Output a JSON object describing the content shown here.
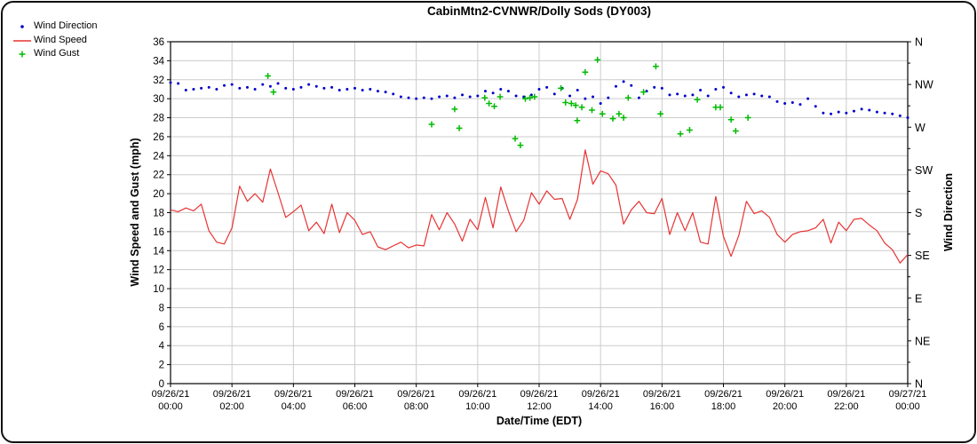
{
  "window": {
    "title": "CabinMtn2-CVNWR/Dolly Sods (DY003)"
  },
  "colors": {
    "wind_direction": "#0000cc",
    "wind_speed": "#e83333",
    "wind_gust": "#00bb00",
    "grid": "#cccccc",
    "axis": "#000000",
    "background": "#ffffff",
    "border": "#111111"
  },
  "legend": {
    "items": [
      {
        "label": "Wind Direction",
        "marker": "dot",
        "color": "#0000cc"
      },
      {
        "label": "Wind Speed",
        "marker": "line",
        "color": "#e83333"
      },
      {
        "label": "Wind Gust",
        "marker": "plus",
        "color": "#00bb00"
      }
    ]
  },
  "chart_data": {
    "type": "line",
    "title": "CabinMtn2-CVNWR/Dolly Sods (DY003)",
    "xlabel": "Date/Time (EDT)",
    "ylabel_left": "Wind Speed and Gust (mph)",
    "ylabel_right": "Wind Direction",
    "grid": true,
    "x_axis": {
      "hours_range": [
        0,
        24
      ],
      "tick_interval_hours": 2,
      "ticks": [
        {
          "date": "09/26/21",
          "time": "00:00"
        },
        {
          "date": "09/26/21",
          "time": "02:00"
        },
        {
          "date": "09/26/21",
          "time": "04:00"
        },
        {
          "date": "09/26/21",
          "time": "06:00"
        },
        {
          "date": "09/26/21",
          "time": "08:00"
        },
        {
          "date": "09/26/21",
          "time": "10:00"
        },
        {
          "date": "09/26/21",
          "time": "12:00"
        },
        {
          "date": "09/26/21",
          "time": "14:00"
        },
        {
          "date": "09/26/21",
          "time": "16:00"
        },
        {
          "date": "09/26/21",
          "time": "18:00"
        },
        {
          "date": "09/26/21",
          "time": "20:00"
        },
        {
          "date": "09/26/21",
          "time": "22:00"
        },
        {
          "date": "09/27/21",
          "time": "00:00"
        }
      ]
    },
    "y_left": {
      "min": 0,
      "max": 36,
      "tick_step": 2
    },
    "y_right": {
      "labels": [
        "N",
        "NW",
        "W",
        "SW",
        "S",
        "SE",
        "E",
        "NE",
        "N"
      ],
      "label_positions_left_scale": [
        36,
        31.5,
        27,
        22.5,
        18,
        13.5,
        9,
        4.5,
        0
      ],
      "minor_tick_positions": [
        33.75,
        29.25,
        24.75,
        20.25,
        15.75,
        11.25,
        6.75,
        2.25
      ]
    },
    "series": [
      {
        "name": "Wind Speed",
        "type": "line",
        "color": "#e83333",
        "units": "mph",
        "x_start_hour": 0,
        "x_step_hours": 0.25,
        "values": [
          18.3,
          18.1,
          18.5,
          18.2,
          18.9,
          16.1,
          14.9,
          14.7,
          16.4,
          20.8,
          19.2,
          20.0,
          19.1,
          22.6,
          20.1,
          17.5,
          18.1,
          18.8,
          16.1,
          17.0,
          15.8,
          18.9,
          15.9,
          18.0,
          17.2,
          15.7,
          16.0,
          14.4,
          14.1,
          14.5,
          14.9,
          14.3,
          14.6,
          14.5,
          17.8,
          16.2,
          18.0,
          16.8,
          15.0,
          17.3,
          16.2,
          19.6,
          16.4,
          20.7,
          18.2,
          16.0,
          17.2,
          20.1,
          18.9,
          20.3,
          19.4,
          19.5,
          17.3,
          19.4,
          24.6,
          21.0,
          22.4,
          22.1,
          20.9,
          16.8,
          18.3,
          19.2,
          18.0,
          17.9,
          19.5,
          15.7,
          18.0,
          16.1,
          18.0,
          14.9,
          14.7,
          19.7,
          15.5,
          13.4,
          15.6,
          19.2,
          17.9,
          18.2,
          17.5,
          15.7,
          14.9,
          15.7,
          16.0,
          16.1,
          16.4,
          17.3,
          14.8,
          17.0,
          16.1,
          17.3,
          17.4,
          16.7,
          16.1,
          14.8,
          14.1,
          12.7,
          13.6
        ]
      },
      {
        "name": "Wind Direction",
        "type": "scatter",
        "marker": "dot",
        "color": "#0000cc",
        "units": "degrees/10 plotted on left 0-36 scale",
        "x_start_hour": 0,
        "x_step_hours": 0.25,
        "values": [
          31.7,
          31.6,
          30.9,
          31.0,
          31.1,
          31.2,
          31.0,
          31.4,
          31.5,
          31.1,
          31.2,
          31.0,
          31.5,
          31.3,
          31.6,
          31.1,
          31.0,
          31.2,
          31.5,
          31.3,
          31.1,
          31.2,
          30.9,
          31.0,
          31.1,
          30.9,
          31.0,
          30.8,
          30.7,
          30.5,
          30.2,
          30.1,
          30.0,
          30.1,
          30.0,
          30.2,
          30.3,
          30.1,
          30.4,
          30.2,
          30.3,
          30.8,
          30.6,
          31.0,
          30.8,
          30.3,
          30.2,
          30.4,
          31.0,
          31.2,
          30.5,
          31.1,
          30.3,
          30.9,
          30.0,
          30.2,
          29.5,
          30.1,
          31.3,
          31.8,
          31.4,
          30.1,
          30.8,
          31.2,
          31.1,
          30.4,
          30.5,
          30.3,
          30.4,
          30.9,
          30.3,
          31.0,
          31.2,
          30.6,
          30.2,
          30.4,
          30.5,
          30.3,
          30.2,
          29.7,
          29.5,
          29.6,
          29.4,
          30.0,
          29.2,
          28.5,
          28.4,
          28.6,
          28.5,
          28.7,
          28.9,
          28.8,
          28.6,
          28.5,
          28.4,
          28.2,
          28.0
        ]
      },
      {
        "name": "Wind Gust",
        "type": "scatter",
        "marker": "plus",
        "color": "#00bb00",
        "units": "mph",
        "x_hours": [
          3.17,
          3.35,
          8.5,
          9.25,
          9.4,
          10.23,
          10.37,
          10.54,
          10.73,
          11.22,
          11.39,
          11.55,
          11.7,
          11.85,
          12.71,
          12.86,
          13.05,
          13.19,
          13.24,
          13.39,
          13.5,
          13.72,
          13.9,
          14.06,
          14.4,
          14.6,
          14.75,
          14.9,
          15.4,
          15.8,
          15.95,
          16.6,
          16.9,
          17.15,
          17.75,
          17.9,
          18.25,
          18.4,
          18.8
        ],
        "values": [
          32.4,
          30.7,
          27.3,
          28.9,
          26.9,
          30.1,
          29.5,
          29.2,
          30.2,
          25.8,
          25.1,
          30.0,
          30.1,
          30.2,
          31.1,
          29.6,
          29.5,
          29.3,
          27.7,
          29.1,
          32.8,
          28.8,
          34.1,
          28.4,
          27.9,
          28.4,
          28.0,
          30.1,
          30.7,
          33.4,
          28.4,
          26.3,
          26.7,
          29.9,
          29.1,
          29.1,
          27.8,
          26.6,
          28.0
        ]
      }
    ]
  }
}
